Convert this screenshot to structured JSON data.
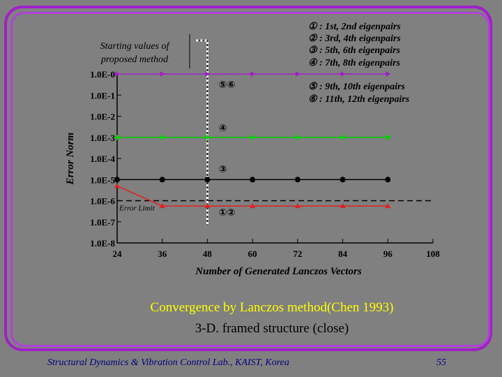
{
  "chart_data": {
    "type": "line",
    "xlabel": "Number of Generated Lanczos Vectors",
    "ylabel": "Error Norm",
    "xlim": [
      24,
      108
    ],
    "ylim_exp": [
      -8,
      0
    ],
    "x_ticks": [
      "24",
      "36",
      "48",
      "60",
      "72",
      "84",
      "96",
      "108"
    ],
    "y_ticks": [
      "1.0E-0",
      "1.0E-1",
      "1.0E-2",
      "1.0E-3",
      "1.0E-4",
      "1.0E-5",
      "1.0E-6",
      "1.0E-7",
      "1.0E-8"
    ],
    "grid": false,
    "series": [
      {
        "color": "#a020c8",
        "marker": "triangle-right",
        "x": [
          24,
          36,
          48,
          60,
          72,
          84,
          96
        ],
        "y_exp": [
          0,
          0,
          0,
          0,
          0,
          0,
          0
        ]
      },
      {
        "color": "#00cc00",
        "marker": "diamond",
        "x": [
          24,
          36,
          48,
          60,
          72,
          84,
          96
        ],
        "y_exp": [
          -3,
          -3,
          -3,
          -3,
          -3,
          -3,
          -3
        ]
      },
      {
        "color": "#000000",
        "marker": "circle",
        "x": [
          24,
          36,
          48,
          60,
          72,
          84,
          96
        ],
        "y_exp": [
          -5,
          -5,
          -5,
          -5,
          -5,
          -5,
          -5
        ]
      },
      {
        "color": "#e02020",
        "marker": "triangle-up",
        "x": [
          24,
          36,
          48,
          60,
          72,
          84,
          96
        ],
        "y_exp": [
          -5.3,
          -6.25,
          -6.25,
          -6.25,
          -6.25,
          -6.25,
          -6.25
        ]
      }
    ],
    "error_limit": {
      "label": "Error Limit",
      "y_exp": -6
    },
    "marker_annotation": {
      "label": "Starting values of proposed method",
      "x": 48
    },
    "point_labels": [
      {
        "text": "⑤⑥",
        "x": 51,
        "y_exp": -0.5
      },
      {
        "text": "④",
        "x": 51,
        "y_exp": -2.55
      },
      {
        "text": "③",
        "x": 51,
        "y_exp": -4.5
      },
      {
        "text": "①②",
        "x": 51,
        "y_exp": -6.55
      }
    ],
    "legend": [
      "① : 1st, 2nd eigenpairs",
      "② : 3rd, 4th eigenpairs",
      "③ : 5th, 6th eigenpairs",
      "④ : 7th, 8th eigenpairs",
      "⑤ : 9th, 10th eigenpairs",
      "⑥ : 11th, 12th eigenpairs"
    ]
  },
  "caption": {
    "line1": "Convergence by Lanczos method(Chen 1993)",
    "line2": "3-D. framed structure (close)"
  },
  "footer": {
    "lab": "Structural Dynamics & Vibration Control Lab., KAIST, Korea",
    "page": "55"
  }
}
